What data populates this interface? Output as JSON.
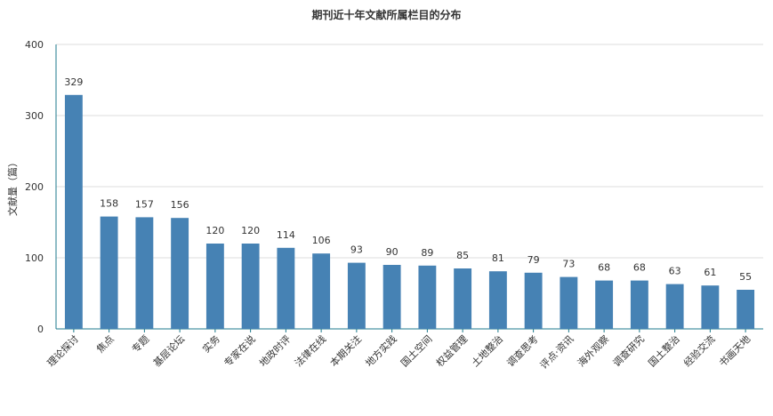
{
  "chart_data": {
    "type": "bar",
    "title": "期刊近十年文献所属栏目的分布",
    "ylabel": "文献量（篇）",
    "xlabel": "",
    "ylim": [
      0,
      400
    ],
    "yticks": [
      0,
      100,
      200,
      300,
      400
    ],
    "grid": true,
    "legend": "none",
    "categories": [
      "理论探讨",
      "焦点",
      "专题",
      "基层论坛",
      "实务",
      "专家在说",
      "地政时评",
      "法律在线",
      "本期关注",
      "地方实践",
      "国土空间",
      "权益管理",
      "土地整治",
      "调查思考",
      "评点·资讯",
      "海外观察",
      "调查研究",
      "国土整治",
      "经验交流",
      "书画天地"
    ],
    "values": [
      329,
      158,
      157,
      156,
      120,
      120,
      114,
      106,
      93,
      90,
      89,
      85,
      81,
      79,
      73,
      68,
      68,
      63,
      61,
      55
    ],
    "bar_color": "#4682b4",
    "axis_color": "#1e7a8c",
    "grid_color": "#dddddd"
  }
}
